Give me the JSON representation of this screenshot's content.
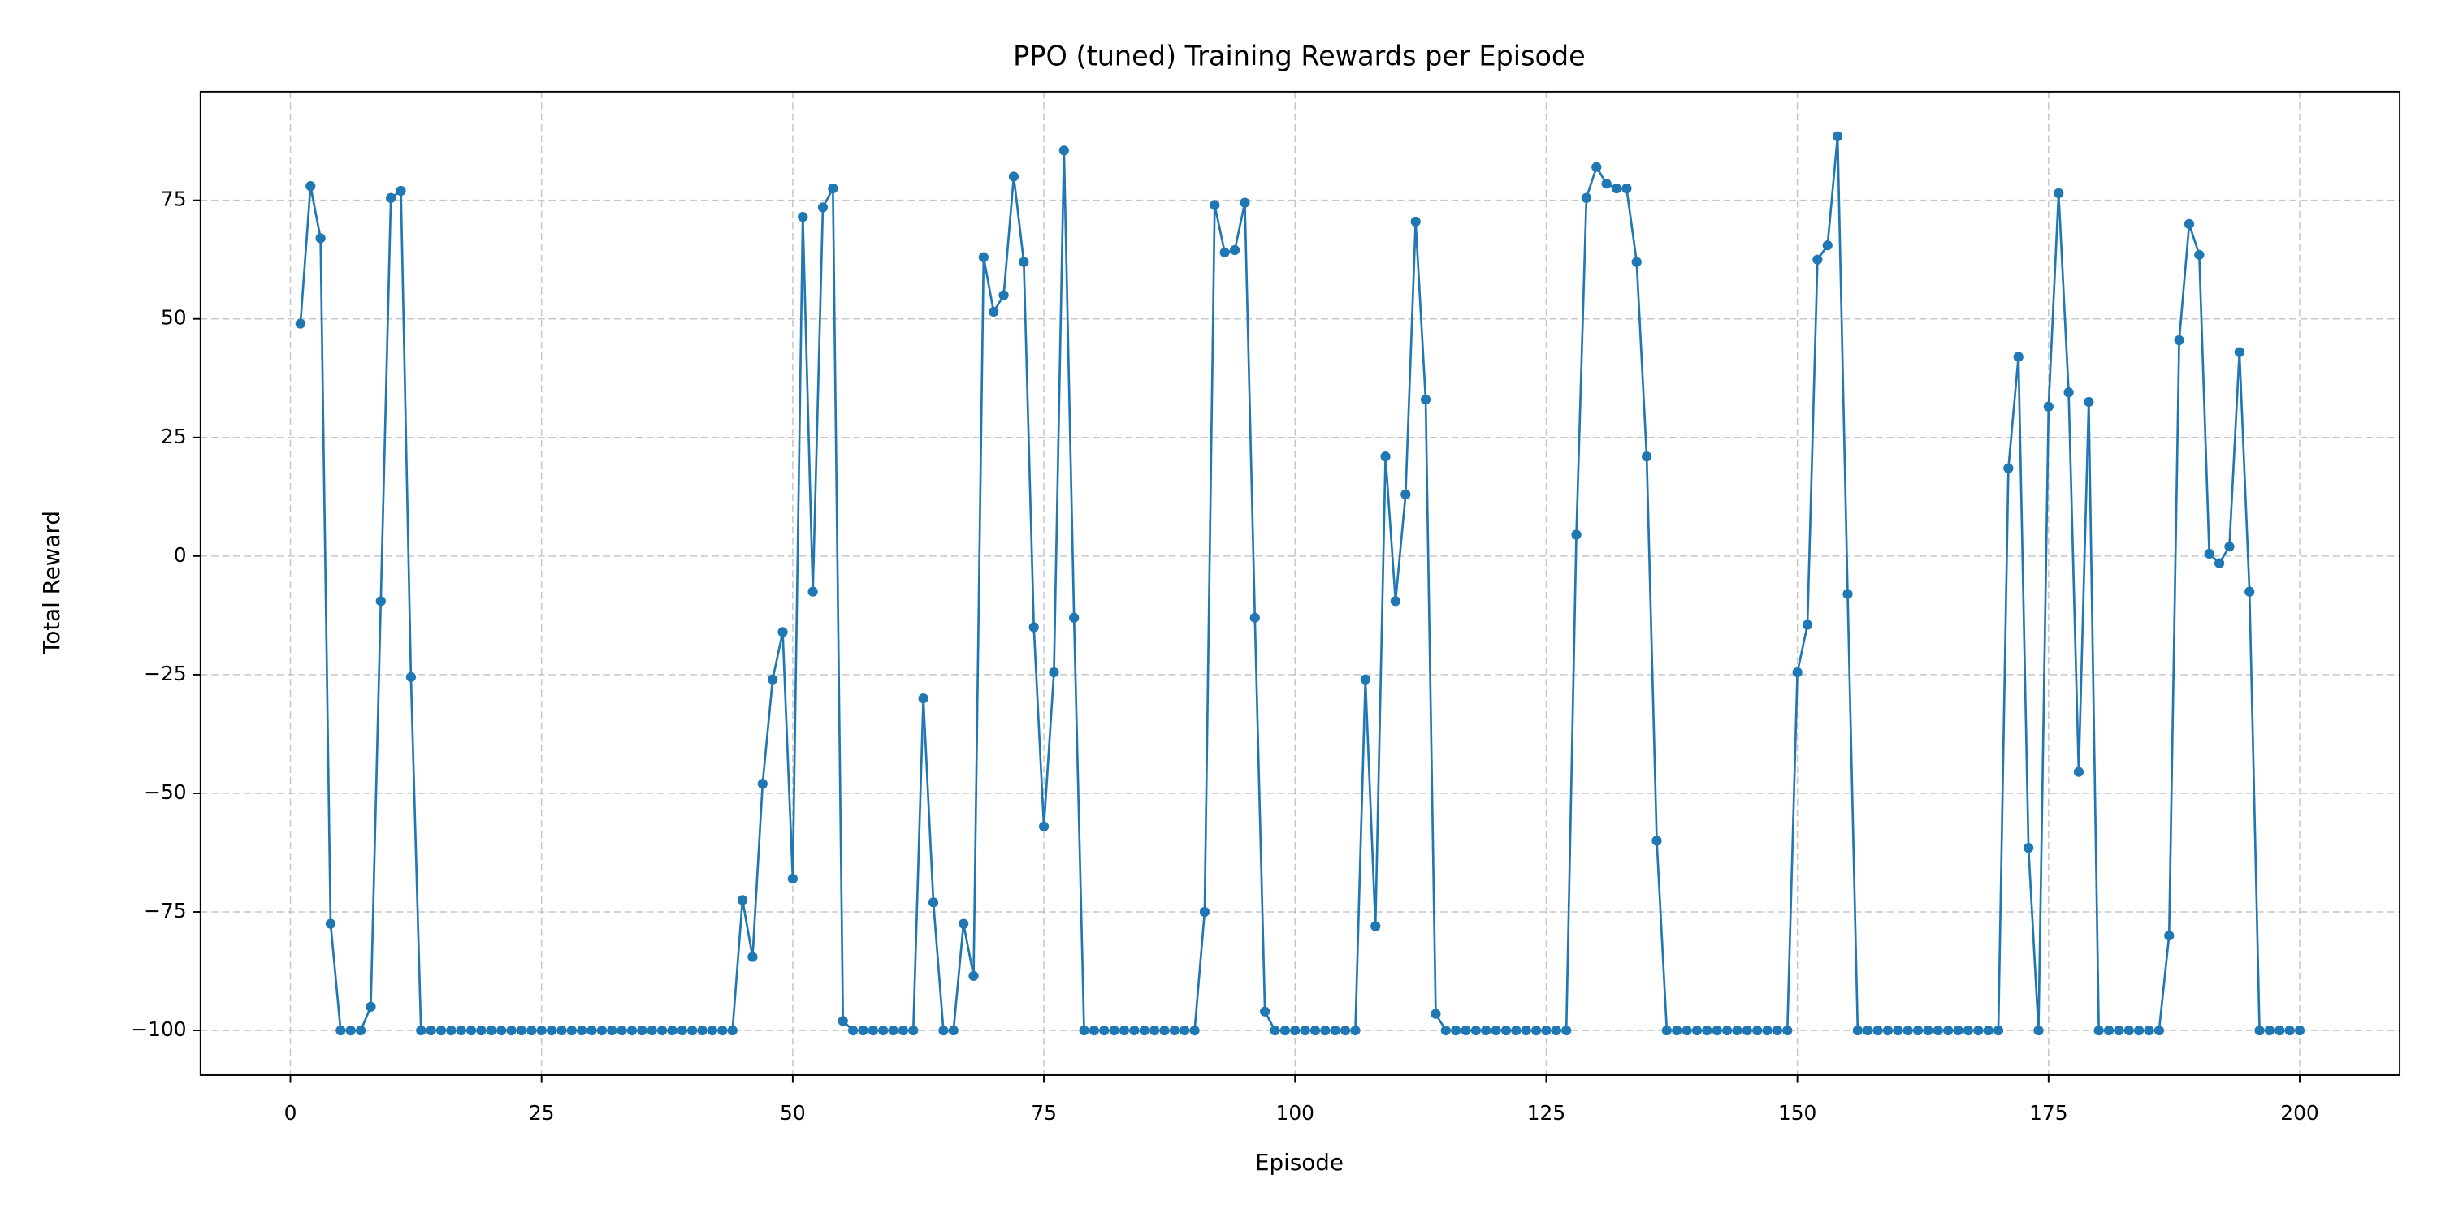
{
  "chart_data": {
    "type": "line",
    "title": "PPO (tuned) Training Rewards per Episode",
    "xlabel": "Episode",
    "ylabel": "Total Reward",
    "color": "#1f77b4",
    "grid": true,
    "markers": true,
    "xlim": [
      -8.95,
      209.95
    ],
    "ylim": [
      -109.4,
      97.9
    ],
    "xticks": [
      0,
      25,
      50,
      75,
      100,
      125,
      150,
      175,
      200
    ],
    "yticks": [
      {
        "value": -100,
        "label": "−100"
      },
      {
        "value": -75,
        "label": "−75"
      },
      {
        "value": -50,
        "label": "−50"
      },
      {
        "value": -25,
        "label": "−25"
      },
      0,
      25,
      50,
      75
    ],
    "x": [
      1,
      2,
      3,
      4,
      5,
      6,
      7,
      8,
      9,
      10,
      11,
      12,
      13,
      14,
      15,
      16,
      17,
      18,
      19,
      20,
      21,
      22,
      23,
      24,
      25,
      26,
      27,
      28,
      29,
      30,
      31,
      32,
      33,
      34,
      35,
      36,
      37,
      38,
      39,
      40,
      41,
      42,
      43,
      44,
      45,
      46,
      47,
      48,
      49,
      50,
      51,
      52,
      53,
      54,
      55,
      56,
      57,
      58,
      59,
      60,
      61,
      62,
      63,
      64,
      65,
      66,
      67,
      68,
      69,
      70,
      71,
      72,
      73,
      74,
      75,
      76,
      77,
      78,
      79,
      80,
      81,
      82,
      83,
      84,
      85,
      86,
      87,
      88,
      89,
      90,
      91,
      92,
      93,
      94,
      95,
      96,
      97,
      98,
      99,
      100,
      101,
      102,
      103,
      104,
      105,
      106,
      107,
      108,
      109,
      110,
      111,
      112,
      113,
      114,
      115,
      116,
      117,
      118,
      119,
      120,
      121,
      122,
      123,
      124,
      125,
      126,
      127,
      128,
      129,
      130,
      131,
      132,
      133,
      134,
      135,
      136,
      137,
      138,
      139,
      140,
      141,
      142,
      143,
      144,
      145,
      146,
      147,
      148,
      149,
      150,
      151,
      152,
      153,
      154,
      155,
      156,
      157,
      158,
      159,
      160,
      161,
      162,
      163,
      164,
      165,
      166,
      167,
      168,
      169,
      170,
      171,
      172,
      173,
      174,
      175,
      176,
      177,
      178,
      179,
      180,
      181,
      182,
      183,
      184,
      185,
      186,
      187,
      188,
      189,
      190,
      191,
      192,
      193,
      194,
      195,
      196,
      197,
      198,
      199,
      200
    ],
    "values": [
      49,
      78,
      67,
      -77.5,
      -100,
      -100,
      -100,
      -95,
      -9.5,
      75.5,
      77,
      -25.5,
      -100,
      -100,
      -100,
      -100,
      -100,
      -100,
      -100,
      -100,
      -100,
      -100,
      -100,
      -100,
      -100,
      -100,
      -100,
      -100,
      -100,
      -100,
      -100,
      -100,
      -100,
      -100,
      -100,
      -100,
      -100,
      -100,
      -100,
      -100,
      -100,
      -100,
      -100,
      -100,
      -72.5,
      -84.5,
      -48,
      -26,
      -16,
      -68,
      71.5,
      -7.5,
      73.5,
      77.5,
      -98,
      -100,
      -100,
      -100,
      -100,
      -100,
      -100,
      -100,
      -30,
      -73,
      -100,
      -100,
      -77.5,
      -88.5,
      63,
      51.5,
      55,
      80,
      62,
      -15,
      -57,
      -24.5,
      85.5,
      -13,
      -100,
      -100,
      -100,
      -100,
      -100,
      -100,
      -100,
      -100,
      -100,
      -100,
      -100,
      -100,
      -75,
      74,
      64,
      64.5,
      74.5,
      -13,
      -96,
      -100,
      -100,
      -100,
      -100,
      -100,
      -100,
      -100,
      -100,
      -100,
      -26,
      -78,
      21,
      -9.5,
      13,
      70.5,
      33,
      -96.5,
      -100,
      -100,
      -100,
      -100,
      -100,
      -100,
      -100,
      -100,
      -100,
      -100,
      -100,
      -100,
      -100,
      4.5,
      75.5,
      82,
      78.5,
      77.5,
      77.5,
      62,
      21,
      -60,
      -100,
      -100,
      -100,
      -100,
      -100,
      -100,
      -100,
      -100,
      -100,
      -100,
      -100,
      -100,
      -100,
      -24.5,
      -14.5,
      62.5,
      65.5,
      88.5,
      -8,
      -100,
      -100,
      -100,
      -100,
      -100,
      -100,
      -100,
      -100,
      -100,
      -100,
      -100,
      -100,
      -100,
      -100,
      -100,
      18.5,
      42,
      -61.5,
      -100,
      31.5,
      76.5,
      34.5,
      -45.5,
      32.5,
      -100,
      -100,
      -100,
      -100,
      -100,
      -100,
      -100,
      -80,
      45.5,
      70,
      63.5,
      0.5,
      -1.5,
      2,
      43,
      -7.5,
      -100,
      -100,
      -100,
      -100,
      -100
    ]
  }
}
